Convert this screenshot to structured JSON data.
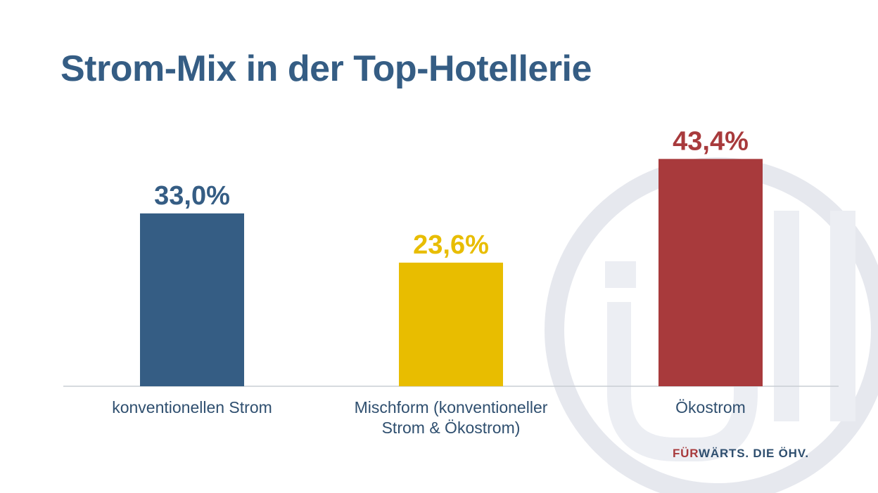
{
  "title": "Strom-Mix in der Top-Hotellerie",
  "chart_data": {
    "type": "bar",
    "categories": [
      "konventionellen Strom",
      "Mischform (konventioneller Strom & Ökostrom)",
      "Ökostrom"
    ],
    "values": [
      33.0,
      23.6,
      43.4
    ],
    "value_labels": [
      "33,0%",
      "23,6%",
      "43,4%"
    ],
    "colors": [
      "#355d84",
      "#e8bd00",
      "#a83a3c"
    ],
    "ylim": [
      0,
      48
    ],
    "grid": false,
    "legend": "none"
  },
  "category_lines": [
    [
      "konventionellen Strom"
    ],
    [
      "Mischform (konventioneller",
      "Strom & Ökostrom)"
    ],
    [
      "Ökostrom"
    ]
  ],
  "slogan": {
    "part1": "FÜR",
    "part2": "WÄRTS. DIE ÖHV."
  },
  "watermark": {
    "icon": "oehv-logo-icon",
    "text": "öhv"
  }
}
